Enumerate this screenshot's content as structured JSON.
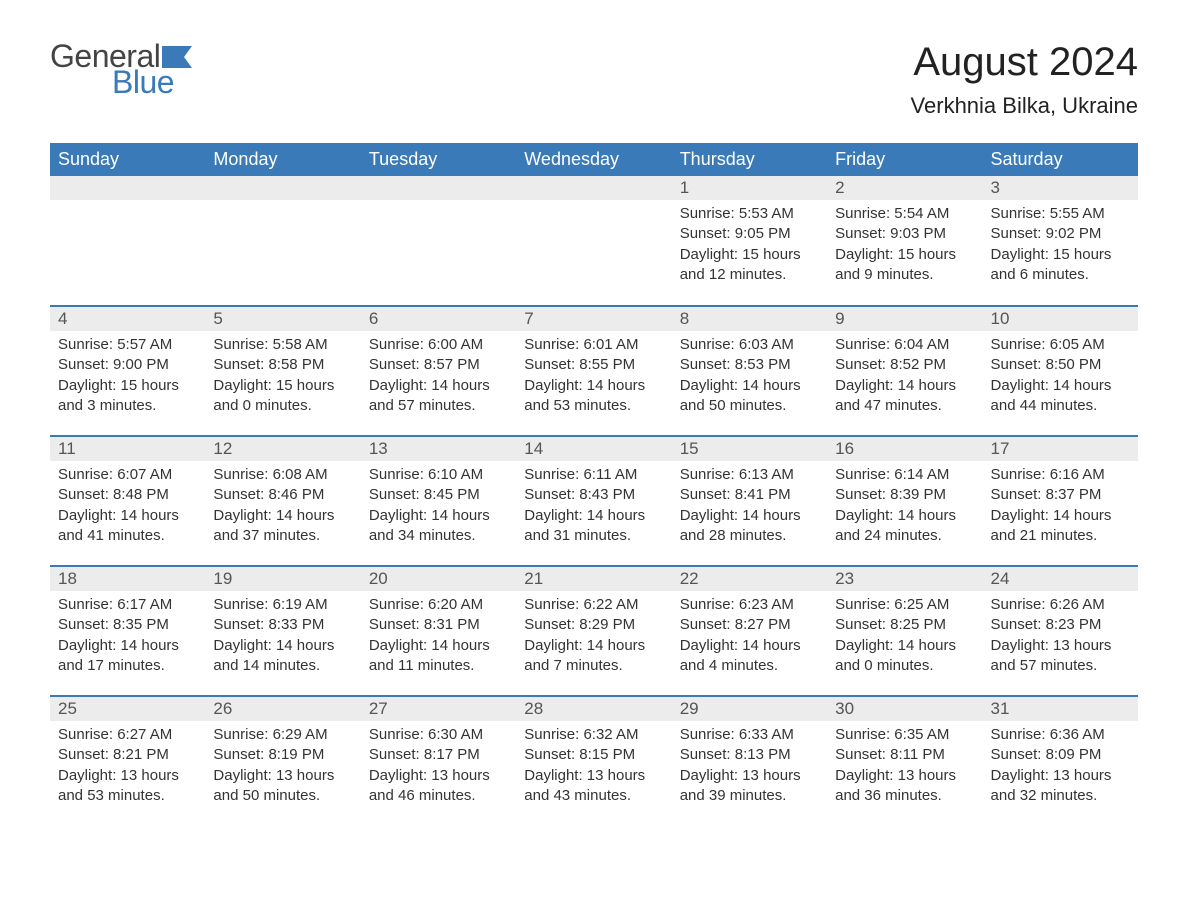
{
  "logo": {
    "general": "General",
    "blue": "Blue"
  },
  "title": "August 2024",
  "location": "Verkhnia Bilka, Ukraine",
  "colors": {
    "header_bg": "#3a7ab8",
    "header_text": "#ffffff",
    "daynum_bg": "#ececec",
    "border": "#3a7ab8",
    "body_text": "#333333"
  },
  "weekdays": [
    "Sunday",
    "Monday",
    "Tuesday",
    "Wednesday",
    "Thursday",
    "Friday",
    "Saturday"
  ],
  "weeks": [
    [
      {
        "blank": true
      },
      {
        "blank": true
      },
      {
        "blank": true
      },
      {
        "blank": true
      },
      {
        "day": "1",
        "sunrise": "Sunrise: 5:53 AM",
        "sunset": "Sunset: 9:05 PM",
        "daylight": "Daylight: 15 hours and 12 minutes."
      },
      {
        "day": "2",
        "sunrise": "Sunrise: 5:54 AM",
        "sunset": "Sunset: 9:03 PM",
        "daylight": "Daylight: 15 hours and 9 minutes."
      },
      {
        "day": "3",
        "sunrise": "Sunrise: 5:55 AM",
        "sunset": "Sunset: 9:02 PM",
        "daylight": "Daylight: 15 hours and 6 minutes."
      }
    ],
    [
      {
        "day": "4",
        "sunrise": "Sunrise: 5:57 AM",
        "sunset": "Sunset: 9:00 PM",
        "daylight": "Daylight: 15 hours and 3 minutes."
      },
      {
        "day": "5",
        "sunrise": "Sunrise: 5:58 AM",
        "sunset": "Sunset: 8:58 PM",
        "daylight": "Daylight: 15 hours and 0 minutes."
      },
      {
        "day": "6",
        "sunrise": "Sunrise: 6:00 AM",
        "sunset": "Sunset: 8:57 PM",
        "daylight": "Daylight: 14 hours and 57 minutes."
      },
      {
        "day": "7",
        "sunrise": "Sunrise: 6:01 AM",
        "sunset": "Sunset: 8:55 PM",
        "daylight": "Daylight: 14 hours and 53 minutes."
      },
      {
        "day": "8",
        "sunrise": "Sunrise: 6:03 AM",
        "sunset": "Sunset: 8:53 PM",
        "daylight": "Daylight: 14 hours and 50 minutes."
      },
      {
        "day": "9",
        "sunrise": "Sunrise: 6:04 AM",
        "sunset": "Sunset: 8:52 PM",
        "daylight": "Daylight: 14 hours and 47 minutes."
      },
      {
        "day": "10",
        "sunrise": "Sunrise: 6:05 AM",
        "sunset": "Sunset: 8:50 PM",
        "daylight": "Daylight: 14 hours and 44 minutes."
      }
    ],
    [
      {
        "day": "11",
        "sunrise": "Sunrise: 6:07 AM",
        "sunset": "Sunset: 8:48 PM",
        "daylight": "Daylight: 14 hours and 41 minutes."
      },
      {
        "day": "12",
        "sunrise": "Sunrise: 6:08 AM",
        "sunset": "Sunset: 8:46 PM",
        "daylight": "Daylight: 14 hours and 37 minutes."
      },
      {
        "day": "13",
        "sunrise": "Sunrise: 6:10 AM",
        "sunset": "Sunset: 8:45 PM",
        "daylight": "Daylight: 14 hours and 34 minutes."
      },
      {
        "day": "14",
        "sunrise": "Sunrise: 6:11 AM",
        "sunset": "Sunset: 8:43 PM",
        "daylight": "Daylight: 14 hours and 31 minutes."
      },
      {
        "day": "15",
        "sunrise": "Sunrise: 6:13 AM",
        "sunset": "Sunset: 8:41 PM",
        "daylight": "Daylight: 14 hours and 28 minutes."
      },
      {
        "day": "16",
        "sunrise": "Sunrise: 6:14 AM",
        "sunset": "Sunset: 8:39 PM",
        "daylight": "Daylight: 14 hours and 24 minutes."
      },
      {
        "day": "17",
        "sunrise": "Sunrise: 6:16 AM",
        "sunset": "Sunset: 8:37 PM",
        "daylight": "Daylight: 14 hours and 21 minutes."
      }
    ],
    [
      {
        "day": "18",
        "sunrise": "Sunrise: 6:17 AM",
        "sunset": "Sunset: 8:35 PM",
        "daylight": "Daylight: 14 hours and 17 minutes."
      },
      {
        "day": "19",
        "sunrise": "Sunrise: 6:19 AM",
        "sunset": "Sunset: 8:33 PM",
        "daylight": "Daylight: 14 hours and 14 minutes."
      },
      {
        "day": "20",
        "sunrise": "Sunrise: 6:20 AM",
        "sunset": "Sunset: 8:31 PM",
        "daylight": "Daylight: 14 hours and 11 minutes."
      },
      {
        "day": "21",
        "sunrise": "Sunrise: 6:22 AM",
        "sunset": "Sunset: 8:29 PM",
        "daylight": "Daylight: 14 hours and 7 minutes."
      },
      {
        "day": "22",
        "sunrise": "Sunrise: 6:23 AM",
        "sunset": "Sunset: 8:27 PM",
        "daylight": "Daylight: 14 hours and 4 minutes."
      },
      {
        "day": "23",
        "sunrise": "Sunrise: 6:25 AM",
        "sunset": "Sunset: 8:25 PM",
        "daylight": "Daylight: 14 hours and 0 minutes."
      },
      {
        "day": "24",
        "sunrise": "Sunrise: 6:26 AM",
        "sunset": "Sunset: 8:23 PM",
        "daylight": "Daylight: 13 hours and 57 minutes."
      }
    ],
    [
      {
        "day": "25",
        "sunrise": "Sunrise: 6:27 AM",
        "sunset": "Sunset: 8:21 PM",
        "daylight": "Daylight: 13 hours and 53 minutes."
      },
      {
        "day": "26",
        "sunrise": "Sunrise: 6:29 AM",
        "sunset": "Sunset: 8:19 PM",
        "daylight": "Daylight: 13 hours and 50 minutes."
      },
      {
        "day": "27",
        "sunrise": "Sunrise: 6:30 AM",
        "sunset": "Sunset: 8:17 PM",
        "daylight": "Daylight: 13 hours and 46 minutes."
      },
      {
        "day": "28",
        "sunrise": "Sunrise: 6:32 AM",
        "sunset": "Sunset: 8:15 PM",
        "daylight": "Daylight: 13 hours and 43 minutes."
      },
      {
        "day": "29",
        "sunrise": "Sunrise: 6:33 AM",
        "sunset": "Sunset: 8:13 PM",
        "daylight": "Daylight: 13 hours and 39 minutes."
      },
      {
        "day": "30",
        "sunrise": "Sunrise: 6:35 AM",
        "sunset": "Sunset: 8:11 PM",
        "daylight": "Daylight: 13 hours and 36 minutes."
      },
      {
        "day": "31",
        "sunrise": "Sunrise: 6:36 AM",
        "sunset": "Sunset: 8:09 PM",
        "daylight": "Daylight: 13 hours and 32 minutes."
      }
    ]
  ]
}
